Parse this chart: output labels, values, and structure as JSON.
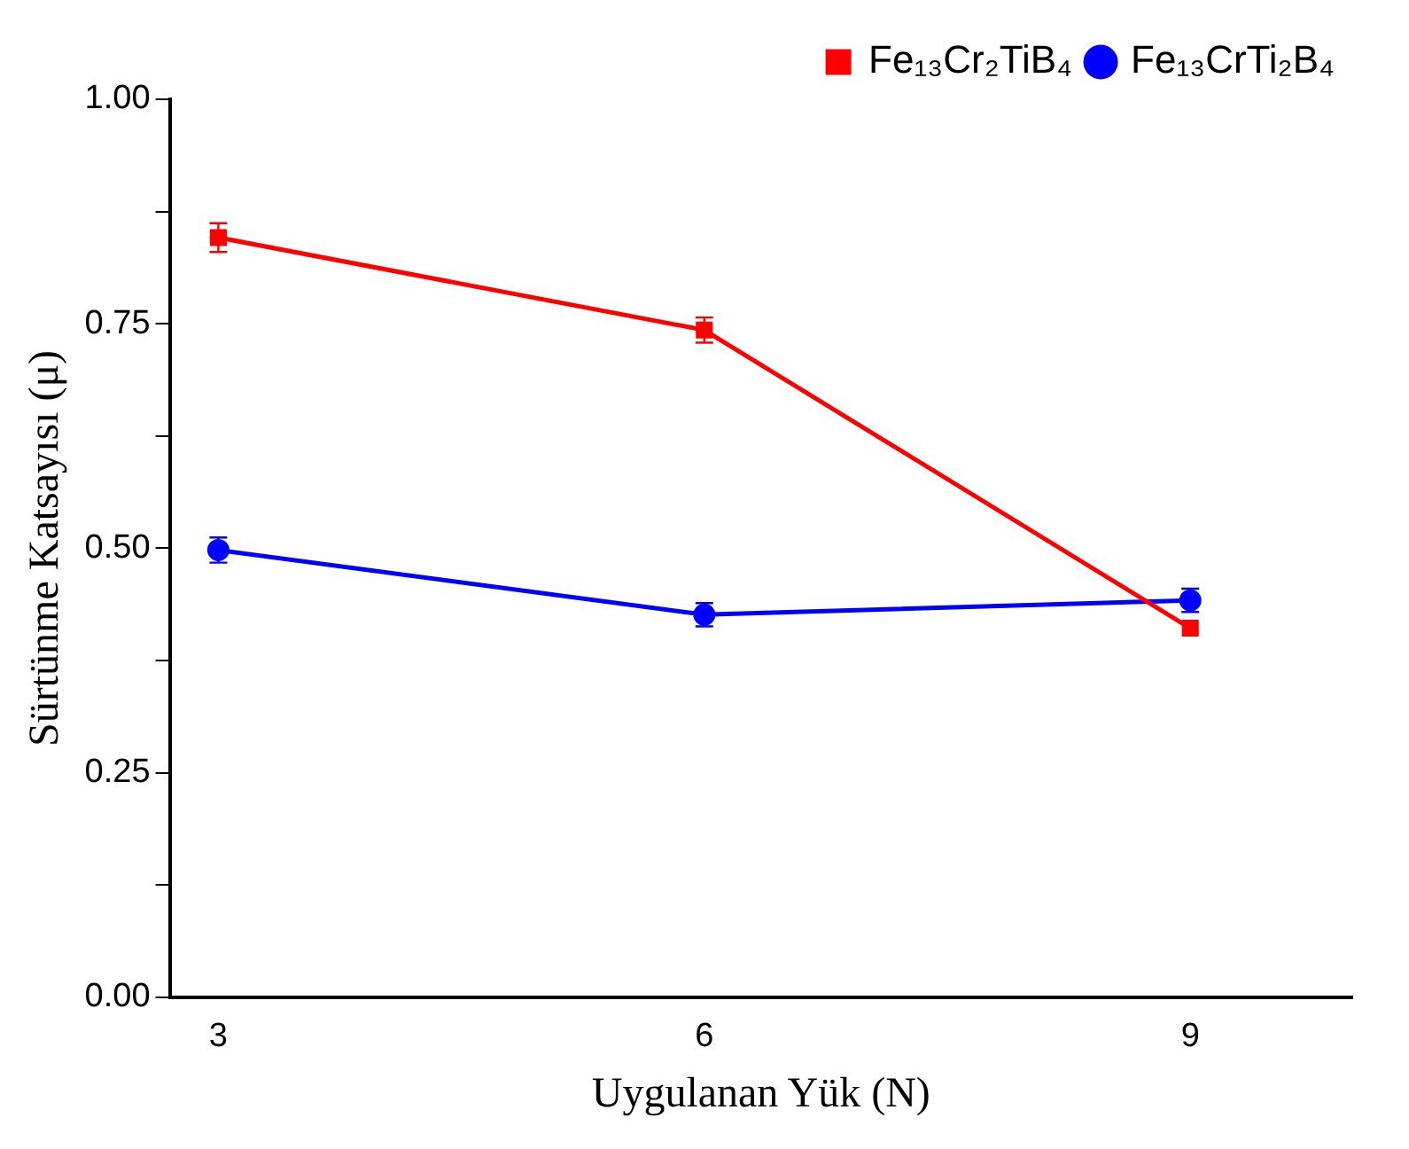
{
  "chart_data": {
    "type": "line",
    "xlabel": "Uygulanan Yük (N)",
    "ylabel": "Sürtünme Katsayısı (μ)",
    "x": [
      3,
      6,
      9
    ],
    "series": [
      {
        "name": "Fe₁₃Cr₂TiB₄",
        "color": "#ff0000",
        "values": [
          0.846,
          0.743,
          0.411
        ],
        "errors": [
          0.016,
          0.014,
          null
        ],
        "marker": "square"
      },
      {
        "name": "Fe₁₃CrTi₂B₄",
        "color": "#0000ff",
        "values": [
          0.498,
          0.426,
          0.442
        ],
        "errors": [
          0.014,
          0.013,
          0.013
        ],
        "marker": "circle"
      }
    ],
    "xlim": [
      2.7,
      10
    ],
    "xticks": [
      3,
      6,
      9
    ],
    "ylim": [
      0,
      1
    ],
    "yticks": [
      {
        "value": 0,
        "label": "0.00"
      },
      {
        "value": 0.125,
        "label": null
      },
      {
        "value": 0.25,
        "label": "0.25"
      },
      {
        "value": 0.375,
        "label": null
      },
      {
        "value": 0.5,
        "label": "0.50"
      },
      {
        "value": 0.625,
        "label": null
      },
      {
        "value": 0.75,
        "label": "0.75"
      },
      {
        "value": 0.875,
        "label": null
      },
      {
        "value": 1,
        "label": "1.00"
      }
    ],
    "grid": false,
    "legend": "top right",
    "line_style": "solid"
  }
}
